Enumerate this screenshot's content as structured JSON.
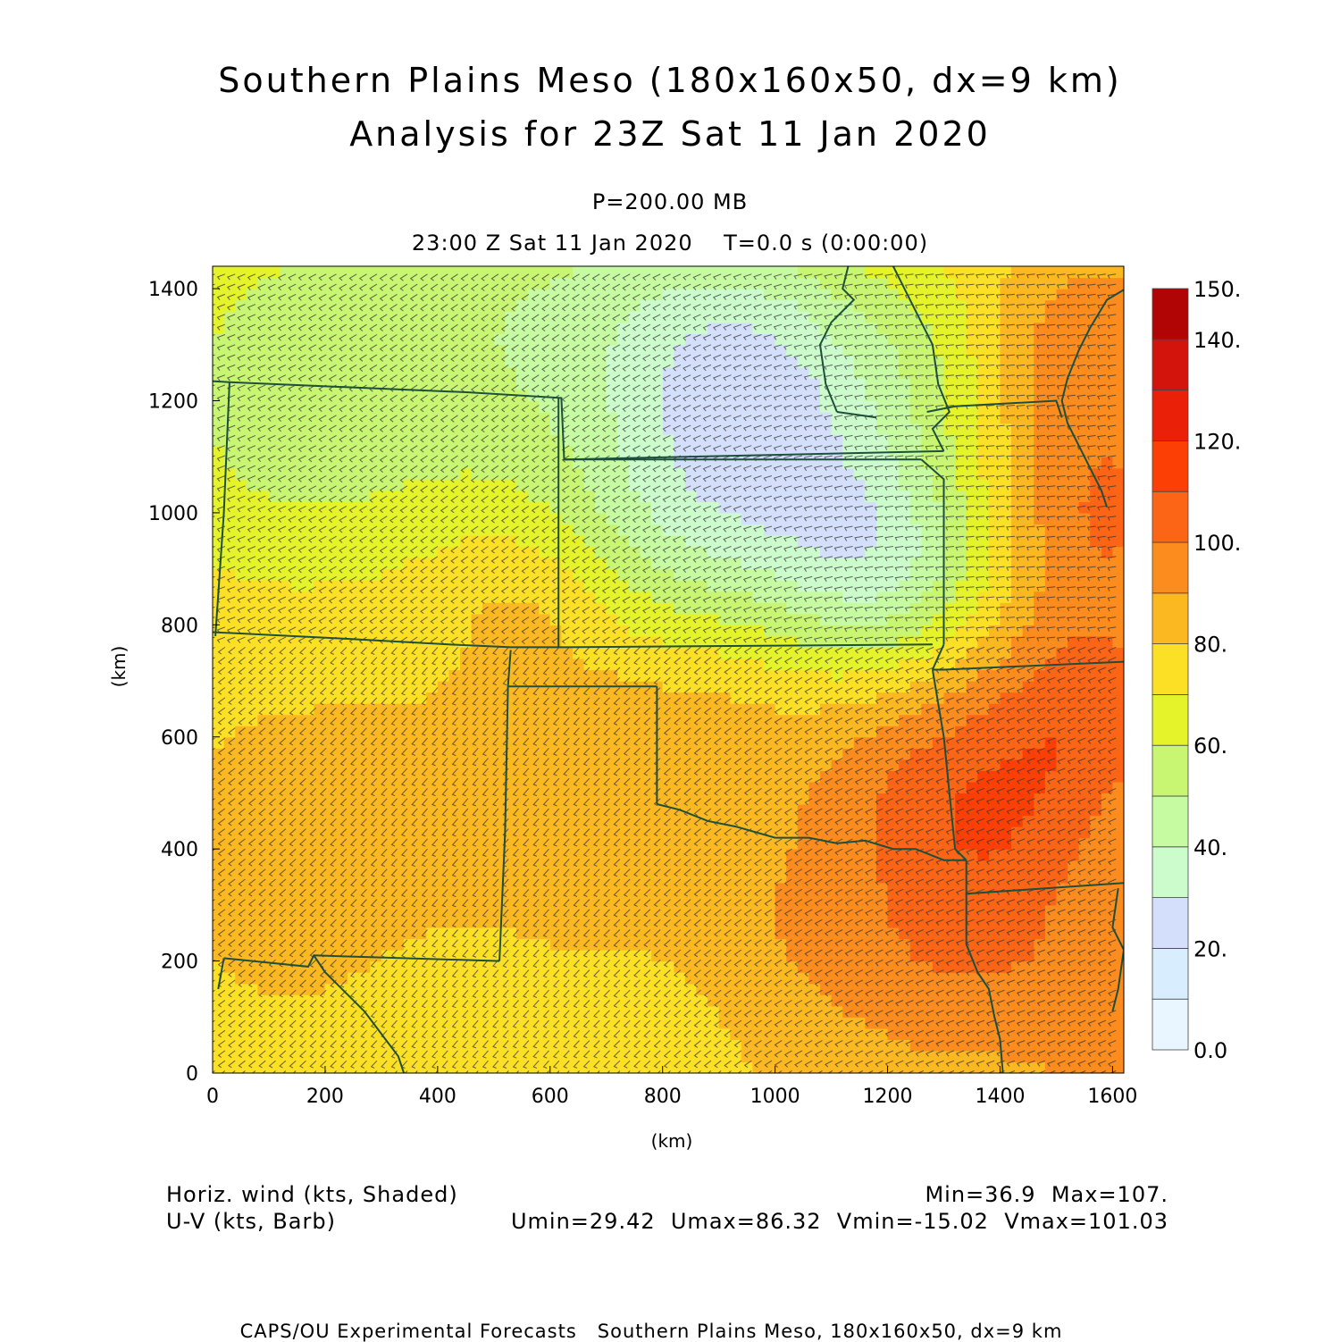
{
  "title": {
    "line1": "Southern Plains Meso (180x160x50, dx=9 km)",
    "line2": "Analysis for 23Z Sat 11 Jan 2020"
  },
  "subtitle": {
    "level": "P=200.00 MB",
    "time": "23:00 Z Sat 11 Jan 2020    T=0.0 s (0:00:00)"
  },
  "axes": {
    "x_label": "(km)",
    "y_label": "(km)",
    "x_range": [
      0,
      1620
    ],
    "y_range": [
      0,
      1440
    ],
    "x_ticks": [
      0,
      200,
      400,
      600,
      800,
      1000,
      1200,
      1400,
      1600
    ],
    "y_ticks": [
      0,
      200,
      400,
      600,
      800,
      1000,
      1200,
      1400
    ]
  },
  "colorbar": {
    "range": [
      0,
      150
    ],
    "bins": [
      {
        "lo": 0,
        "hi": 10,
        "color": "#eaf6ff"
      },
      {
        "lo": 10,
        "hi": 20,
        "color": "#d8eeff"
      },
      {
        "lo": 20,
        "hi": 30,
        "color": "#d4e0fb"
      },
      {
        "lo": 30,
        "hi": 40,
        "color": "#ccfccc"
      },
      {
        "lo": 40,
        "hi": 50,
        "color": "#c6fba2"
      },
      {
        "lo": 50,
        "hi": 60,
        "color": "#c8f572"
      },
      {
        "lo": 60,
        "hi": 70,
        "color": "#e5f32b"
      },
      {
        "lo": 70,
        "hi": 80,
        "color": "#fce025"
      },
      {
        "lo": 80,
        "hi": 90,
        "color": "#fcb821"
      },
      {
        "lo": 90,
        "hi": 100,
        "color": "#fc8c1d"
      },
      {
        "lo": 100,
        "hi": 110,
        "color": "#fc6515"
      },
      {
        "lo": 110,
        "hi": 120,
        "color": "#fc4005"
      },
      {
        "lo": 120,
        "hi": 130,
        "color": "#ea2009"
      },
      {
        "lo": 130,
        "hi": 140,
        "color": "#d2140c"
      },
      {
        "lo": 140,
        "hi": 150,
        "color": "#b10404"
      }
    ],
    "labels": [
      "0.0",
      "20.",
      "40.",
      "60.",
      "80.",
      "100.",
      "120.",
      "140.",
      "150."
    ],
    "label_values": [
      0,
      20,
      40,
      60,
      80,
      100,
      120,
      140,
      150
    ]
  },
  "field": {
    "base": 78,
    "blobs": [
      [
        120,
        1350,
        -14,
        320
      ],
      [
        450,
        1380,
        -10,
        260
      ],
      [
        700,
        1350,
        -20,
        260
      ],
      [
        950,
        1300,
        -30,
        220
      ],
      [
        1050,
        1050,
        -30,
        260
      ],
      [
        1200,
        900,
        -28,
        200
      ],
      [
        800,
        1000,
        -22,
        220
      ],
      [
        150,
        1100,
        -14,
        260
      ],
      [
        480,
        1100,
        -6,
        220
      ],
      [
        560,
        850,
        8,
        140
      ],
      [
        1250,
        1300,
        -12,
        200
      ],
      [
        1550,
        1300,
        20,
        180
      ],
      [
        1580,
        1000,
        22,
        200
      ],
      [
        1550,
        650,
        24,
        200
      ],
      [
        1400,
        400,
        22,
        220
      ],
      [
        1250,
        550,
        14,
        200
      ],
      [
        1050,
        250,
        10,
        220
      ],
      [
        1300,
        150,
        12,
        200
      ],
      [
        200,
        400,
        10,
        220
      ],
      [
        650,
        500,
        10,
        220
      ],
      [
        900,
        600,
        6,
        200
      ],
      [
        400,
        100,
        -6,
        140
      ],
      [
        800,
        80,
        -4,
        140
      ],
      [
        1580,
        100,
        16,
        160
      ]
    ]
  },
  "boundaries": [
    [
      [
        0,
        1235
      ],
      [
        30,
        1233
      ],
      [
        455,
        1215
      ],
      [
        620,
        1205
      ],
      [
        625,
        1095
      ],
      [
        1260,
        1095
      ]
    ],
    [
      [
        30,
        1233
      ],
      [
        20,
        1000
      ],
      [
        5,
        780
      ]
    ],
    [
      [
        0,
        787
      ],
      [
        240,
        775
      ],
      [
        420,
        765
      ],
      [
        530,
        760
      ],
      [
        615,
        760
      ]
    ],
    [
      [
        615,
        1205
      ],
      [
        615,
        760
      ]
    ],
    [
      [
        615,
        760
      ],
      [
        1280,
        765
      ]
    ],
    [
      [
        625,
        1095
      ],
      [
        1300,
        1110
      ]
    ],
    [
      [
        1300,
        1110
      ],
      [
        1280,
        1150
      ],
      [
        1310,
        1180
      ],
      [
        1290,
        1230
      ],
      [
        1280,
        1300
      ],
      [
        1240,
        1380
      ],
      [
        1210,
        1440
      ]
    ],
    [
      [
        1260,
        1095
      ],
      [
        1300,
        1060
      ],
      [
        1300,
        765
      ]
    ],
    [
      [
        1300,
        765
      ],
      [
        1280,
        720
      ]
    ],
    [
      [
        1130,
        1440
      ],
      [
        1120,
        1400
      ],
      [
        1140,
        1380
      ],
      [
        1100,
        1340
      ],
      [
        1080,
        1300
      ],
      [
        1090,
        1230
      ],
      [
        1110,
        1180
      ]
    ],
    [
      [
        1270,
        1180
      ],
      [
        1320,
        1190
      ],
      [
        1500,
        1200
      ],
      [
        1510,
        1170
      ]
    ],
    [
      [
        1110,
        1180
      ],
      [
        1180,
        1170
      ]
    ],
    [
      [
        1640,
        1410
      ],
      [
        1590,
        1380
      ],
      [
        1560,
        1330
      ],
      [
        1540,
        1290
      ],
      [
        1520,
        1240
      ],
      [
        1510,
        1200
      ],
      [
        1520,
        1160
      ],
      [
        1540,
        1120
      ],
      [
        1560,
        1080
      ],
      [
        1580,
        1040
      ],
      [
        1590,
        1010
      ]
    ],
    [
      [
        1280,
        720
      ],
      [
        1300,
        720
      ],
      [
        1640,
        735
      ]
    ],
    [
      [
        530,
        755
      ],
      [
        525,
        690
      ]
    ],
    [
      [
        525,
        690
      ],
      [
        790,
        690
      ]
    ],
    [
      [
        790,
        690
      ],
      [
        790,
        480
      ]
    ],
    [
      [
        790,
        480
      ],
      [
        830,
        470
      ],
      [
        880,
        450
      ],
      [
        930,
        440
      ],
      [
        1000,
        420
      ],
      [
        1060,
        420
      ],
      [
        1110,
        410
      ],
      [
        1160,
        415
      ],
      [
        1210,
        400
      ],
      [
        1250,
        400
      ],
      [
        1300,
        380
      ],
      [
        1340,
        380
      ]
    ],
    [
      [
        1280,
        720
      ],
      [
        1300,
        600
      ],
      [
        1310,
        500
      ],
      [
        1320,
        400
      ],
      [
        1340,
        380
      ]
    ],
    [
      [
        1340,
        380
      ],
      [
        1340,
        320
      ],
      [
        1630,
        340
      ]
    ],
    [
      [
        1340,
        320
      ],
      [
        1340,
        230
      ],
      [
        1360,
        180
      ],
      [
        1380,
        150
      ],
      [
        1390,
        100
      ],
      [
        1400,
        60
      ],
      [
        1405,
        0
      ]
    ],
    [
      [
        525,
        690
      ],
      [
        520,
        430
      ],
      [
        510,
        200
      ]
    ],
    [
      [
        510,
        200
      ],
      [
        180,
        210
      ],
      [
        170,
        190
      ],
      [
        20,
        205
      ]
    ],
    [
      [
        20,
        205
      ],
      [
        10,
        150
      ]
    ],
    [
      [
        180,
        210
      ],
      [
        200,
        180
      ],
      [
        230,
        150
      ],
      [
        270,
        110
      ],
      [
        300,
        70
      ],
      [
        330,
        30
      ],
      [
        340,
        0
      ]
    ],
    [
      [
        1600,
        110
      ],
      [
        1610,
        150
      ],
      [
        1620,
        220
      ],
      [
        1600,
        260
      ],
      [
        1610,
        330
      ]
    ]
  ],
  "notes": {
    "left_line1": "Horiz. wind (kts, Shaded)",
    "left_line2": "U-V (kts, Barb)",
    "right_line1": "Min=36.9  Max=107.",
    "right_line2": "Umin=29.42  Umax=86.32  Vmin=-15.02  Vmax=101.03"
  },
  "footer": "CAPS/OU Experimental Forecasts   Southern Plains Meso, 180x160x50, dx=9 km"
}
